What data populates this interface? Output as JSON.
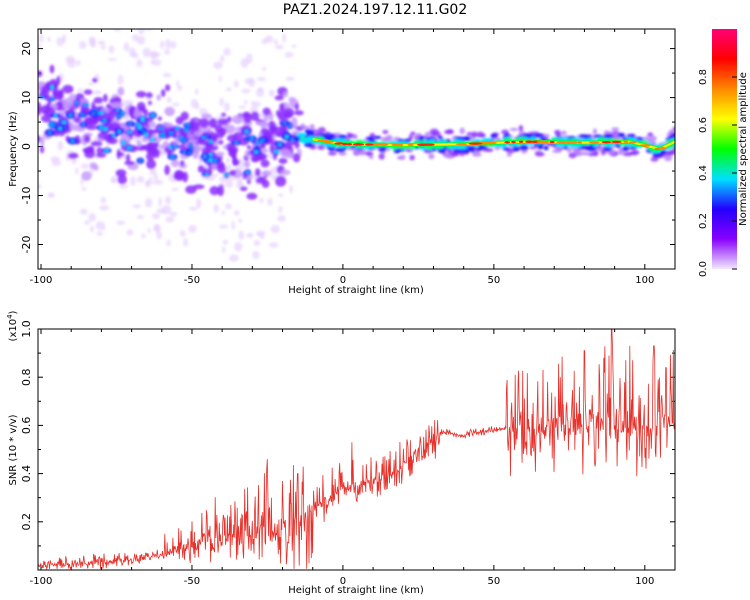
{
  "figure_title": "PAZ1.2024.197.12.11.G02",
  "chart_data": [
    {
      "type": "heatmap",
      "xlabel": "Height of straight line (km)",
      "ylabel": "Frequency (Hz)",
      "xlim": [
        -101,
        110
      ],
      "ylim": [
        -25,
        24
      ],
      "x_ticks": [
        -100,
        -50,
        0,
        50,
        100
      ],
      "y_ticks": [
        -20,
        -10,
        0,
        10,
        20
      ],
      "colorbar": {
        "label": "Normalized spectral amplitude",
        "range": [
          0,
          1
        ],
        "ticks": [
          0.0,
          0.2,
          0.4,
          0.6,
          0.8
        ],
        "colors": [
          "#f2e8ff",
          "#8800ff",
          "#2200ff",
          "#00e0ff",
          "#00ff00",
          "#ffff00",
          "#ff8800",
          "#ff0000",
          "#ff0077"
        ]
      },
      "ridge": [
        {
          "x": -100,
          "freq": 8.0
        },
        {
          "x": -90,
          "freq": 5.5
        },
        {
          "x": -80,
          "freq": 4.0
        },
        {
          "x": -70,
          "freq": 3.0
        },
        {
          "x": -60,
          "freq": 2.5
        },
        {
          "x": -50,
          "freq": 0.5
        },
        {
          "x": -40,
          "freq": -1.5
        },
        {
          "x": -30,
          "freq": -1.0
        },
        {
          "x": -20,
          "freq": 2.5
        },
        {
          "x": -15,
          "freq": 2.0
        },
        {
          "x": -10,
          "freq": 1.5
        },
        {
          "x": 0,
          "freq": 0.5
        },
        {
          "x": 20,
          "freq": 0.3
        },
        {
          "x": 40,
          "freq": 0.5
        },
        {
          "x": 60,
          "freq": 1.0
        },
        {
          "x": 80,
          "freq": 0.8
        },
        {
          "x": 95,
          "freq": 1.0
        },
        {
          "x": 105,
          "freq": -0.5
        },
        {
          "x": 110,
          "freq": 1.0
        }
      ]
    },
    {
      "type": "line",
      "xlabel": "Height of straight line (km)",
      "ylabel": "SNR (10 * v/v)",
      "scale_label": "(x10^4)",
      "xlim": [
        -101,
        110
      ],
      "ylim": [
        0.0,
        1.0
      ],
      "x_ticks": [
        -100,
        -50,
        0,
        50,
        100
      ],
      "y_ticks": [
        0.2,
        0.4,
        0.6,
        0.8,
        1.0
      ],
      "color": "#e8302a",
      "baseline": [
        {
          "x": -101,
          "y": 0.02
        },
        {
          "x": -80,
          "y": 0.03
        },
        {
          "x": -65,
          "y": 0.05
        },
        {
          "x": -55,
          "y": 0.08
        },
        {
          "x": -45,
          "y": 0.13
        },
        {
          "x": -35,
          "y": 0.16
        },
        {
          "x": -25,
          "y": 0.17
        },
        {
          "x": -15,
          "y": 0.18
        },
        {
          "x": -10,
          "y": 0.23
        },
        {
          "x": -5,
          "y": 0.3
        },
        {
          "x": 0,
          "y": 0.33
        },
        {
          "x": 5,
          "y": 0.34
        },
        {
          "x": 10,
          "y": 0.37
        },
        {
          "x": 15,
          "y": 0.39
        },
        {
          "x": 20,
          "y": 0.43
        },
        {
          "x": 25,
          "y": 0.5
        },
        {
          "x": 30,
          "y": 0.53
        },
        {
          "x": 32,
          "y": 0.57
        },
        {
          "x": 40,
          "y": 0.56
        },
        {
          "x": 50,
          "y": 0.58
        },
        {
          "x": 55,
          "y": 0.59
        },
        {
          "x": 70,
          "y": 0.6
        },
        {
          "x": 90,
          "y": 0.61
        },
        {
          "x": 110,
          "y": 0.59
        }
      ],
      "peaks": [
        {
          "x": -25,
          "y": 0.46
        },
        {
          "x": -15,
          "y": 0.4
        },
        {
          "x": 3,
          "y": 0.53
        },
        {
          "x": 57,
          "y": 0.81
        },
        {
          "x": 72,
          "y": 0.8
        },
        {
          "x": 80,
          "y": 0.91
        },
        {
          "x": 89,
          "y": 1.0
        },
        {
          "x": 95,
          "y": 0.93
        },
        {
          "x": 103,
          "y": 0.93
        },
        {
          "x": 107,
          "y": 0.84
        }
      ]
    }
  ]
}
